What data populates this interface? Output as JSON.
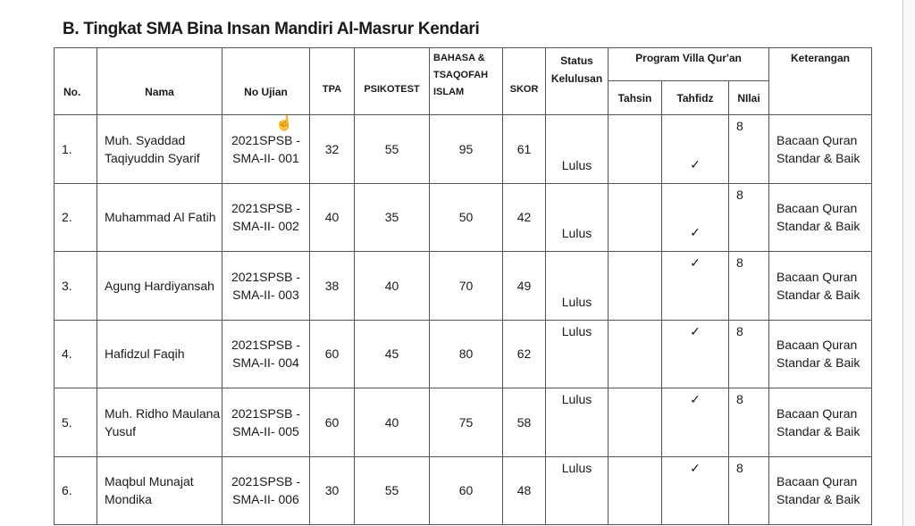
{
  "title": "B. Tingkat SMA Bina Insan Mandiri Al-Masrur Kendari",
  "headers": {
    "no": "No.",
    "nama": "Nama",
    "no_ujian": "No Ujian",
    "tpa": "TPA",
    "psikotest": "PSIKOTEST",
    "bahasa": "BAHASA & TSAQOFAH ISLAM",
    "skor": "SKOR",
    "status": "Status Kelulusan",
    "program": "Program Villa Qur'an",
    "tahsin": "Tahsin",
    "tahfidz": "Tahfidz",
    "nilai": "NIlai",
    "keterangan": "Keterangan"
  },
  "rows": [
    {
      "no": "1.",
      "nama": "Muh. Syaddad Taqiyuddin Syarif",
      "no_ujian": "2021SPSB -SMA-II- 001",
      "tpa": "32",
      "psikotest": "55",
      "bahasa": "95",
      "skor": "61",
      "status": "Lulus",
      "tahfidz": "✓",
      "nilai": "8",
      "keterangan": "Bacaan Quran Standar & Baik"
    },
    {
      "no": "2.",
      "nama": "Muhammad Al Fatih",
      "no_ujian": "2021SPSB -SMA-II- 002",
      "tpa": "40",
      "psikotest": "35",
      "bahasa": "50",
      "skor": "42",
      "status": "Lulus",
      "tahfidz": "✓",
      "nilai": "8",
      "keterangan": "Bacaan Quran Standar & Baik"
    },
    {
      "no": "3.",
      "nama": "Agung Hardiyansah",
      "no_ujian": "2021SPSB -SMA-II- 003",
      "tpa": "38",
      "psikotest": "40",
      "bahasa": "70",
      "skor": "49",
      "status": "Lulus",
      "tahfidz": "✓",
      "nilai": "8",
      "keterangan": "Bacaan Quran Standar & Baik"
    },
    {
      "no": "4.",
      "nama": "Hafidzul Faqih",
      "no_ujian": "2021SPSB -SMA-II- 004",
      "tpa": "60",
      "psikotest": "45",
      "bahasa": "80",
      "skor": "62",
      "status": "Lulus",
      "tahfidz": "✓",
      "nilai": "8",
      "keterangan": "Bacaan Quran Standar & Baik"
    },
    {
      "no": "5.",
      "nama": "Muh. Ridho Maulana Yusuf",
      "no_ujian": "2021SPSB -SMA-II- 005",
      "tpa": "60",
      "psikotest": "40",
      "bahasa": "75",
      "skor": "58",
      "status": "Lulus",
      "tahfidz": "✓",
      "nilai": "8",
      "keterangan": "Bacaan Quran Standar & Baik"
    },
    {
      "no": "6.",
      "nama": "Maqbul Munajat Mondika",
      "no_ujian": "2021SPSB -SMA-II- 006",
      "tpa": "30",
      "psikotest": "55",
      "bahasa": "60",
      "skor": "48",
      "status": "Lulus",
      "tahfidz": "✓",
      "nilai": "8",
      "keterangan": "Bacaan Quran Standar & Baik"
    }
  ]
}
